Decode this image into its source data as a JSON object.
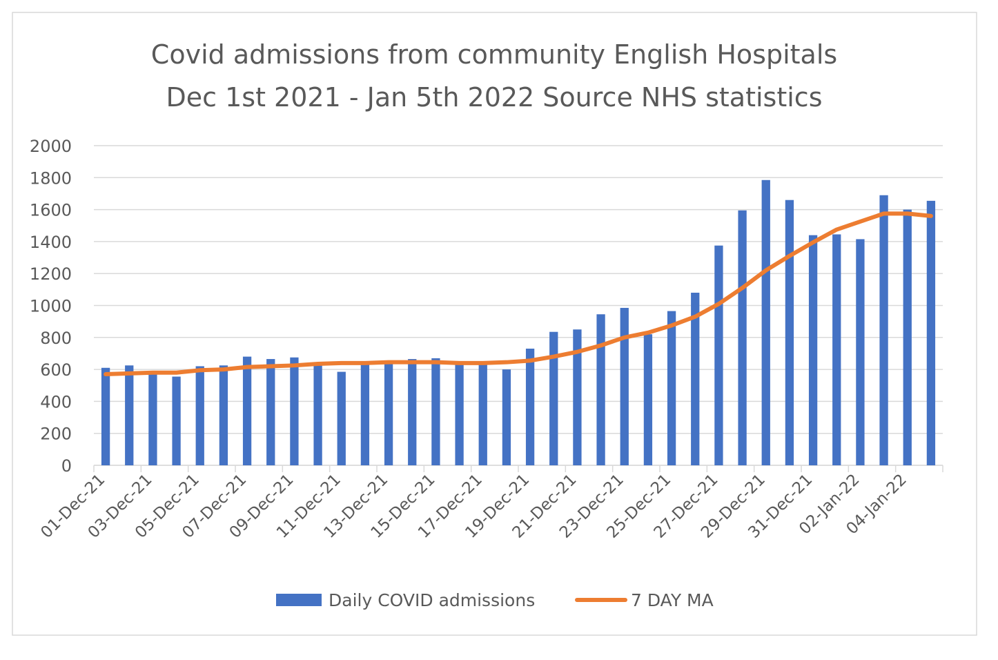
{
  "chart_data": {
    "type": "bar-line",
    "title": "Covid admissions from community English Hospitals",
    "subtitle": "Dec 1st 2021 - Jan 5th 2022 Source NHS statistics",
    "categories": [
      "01-Dec-21",
      null,
      "03-Dec-21",
      null,
      "05-Dec-21",
      null,
      "07-Dec-21",
      null,
      "09-Dec-21",
      null,
      "11-Dec-21",
      null,
      "13-Dec-21",
      null,
      "15-Dec-21",
      null,
      "17-Dec-21",
      null,
      "19-Dec-21",
      null,
      "21-Dec-21",
      null,
      "23-Dec-21",
      null,
      "25-Dec-21",
      null,
      "27-Dec-21",
      null,
      "29-Dec-21",
      null,
      "31-Dec-21",
      null,
      "02-Jan-22",
      null,
      "04-Jan-22",
      null
    ],
    "series": [
      {
        "name": "Daily COVID admissions",
        "type": "bar",
        "color": "#4472c4",
        "values": [
          610,
          625,
          580,
          555,
          620,
          625,
          680,
          665,
          675,
          625,
          585,
          630,
          635,
          665,
          670,
          630,
          630,
          600,
          730,
          835,
          850,
          945,
          985,
          820,
          965,
          1080,
          1375,
          1595,
          1785,
          1660,
          1440,
          1445,
          1415,
          1690,
          1600,
          1655
        ]
      },
      {
        "name": "7 DAY MA",
        "type": "line",
        "color": "#ed7d31",
        "values": [
          570,
          575,
          580,
          580,
          595,
          600,
          615,
          620,
          625,
          635,
          640,
          640,
          645,
          645,
          645,
          640,
          640,
          645,
          655,
          680,
          710,
          750,
          800,
          830,
          875,
          930,
          1010,
          1110,
          1220,
          1310,
          1395,
          1475,
          1525,
          1575,
          1575,
          1560
        ]
      }
    ],
    "ylim": [
      0,
      2000
    ],
    "yticks": [
      0,
      200,
      400,
      600,
      800,
      1000,
      1200,
      1400,
      1600,
      1800,
      2000
    ],
    "grid": true,
    "legend": "bottom"
  }
}
